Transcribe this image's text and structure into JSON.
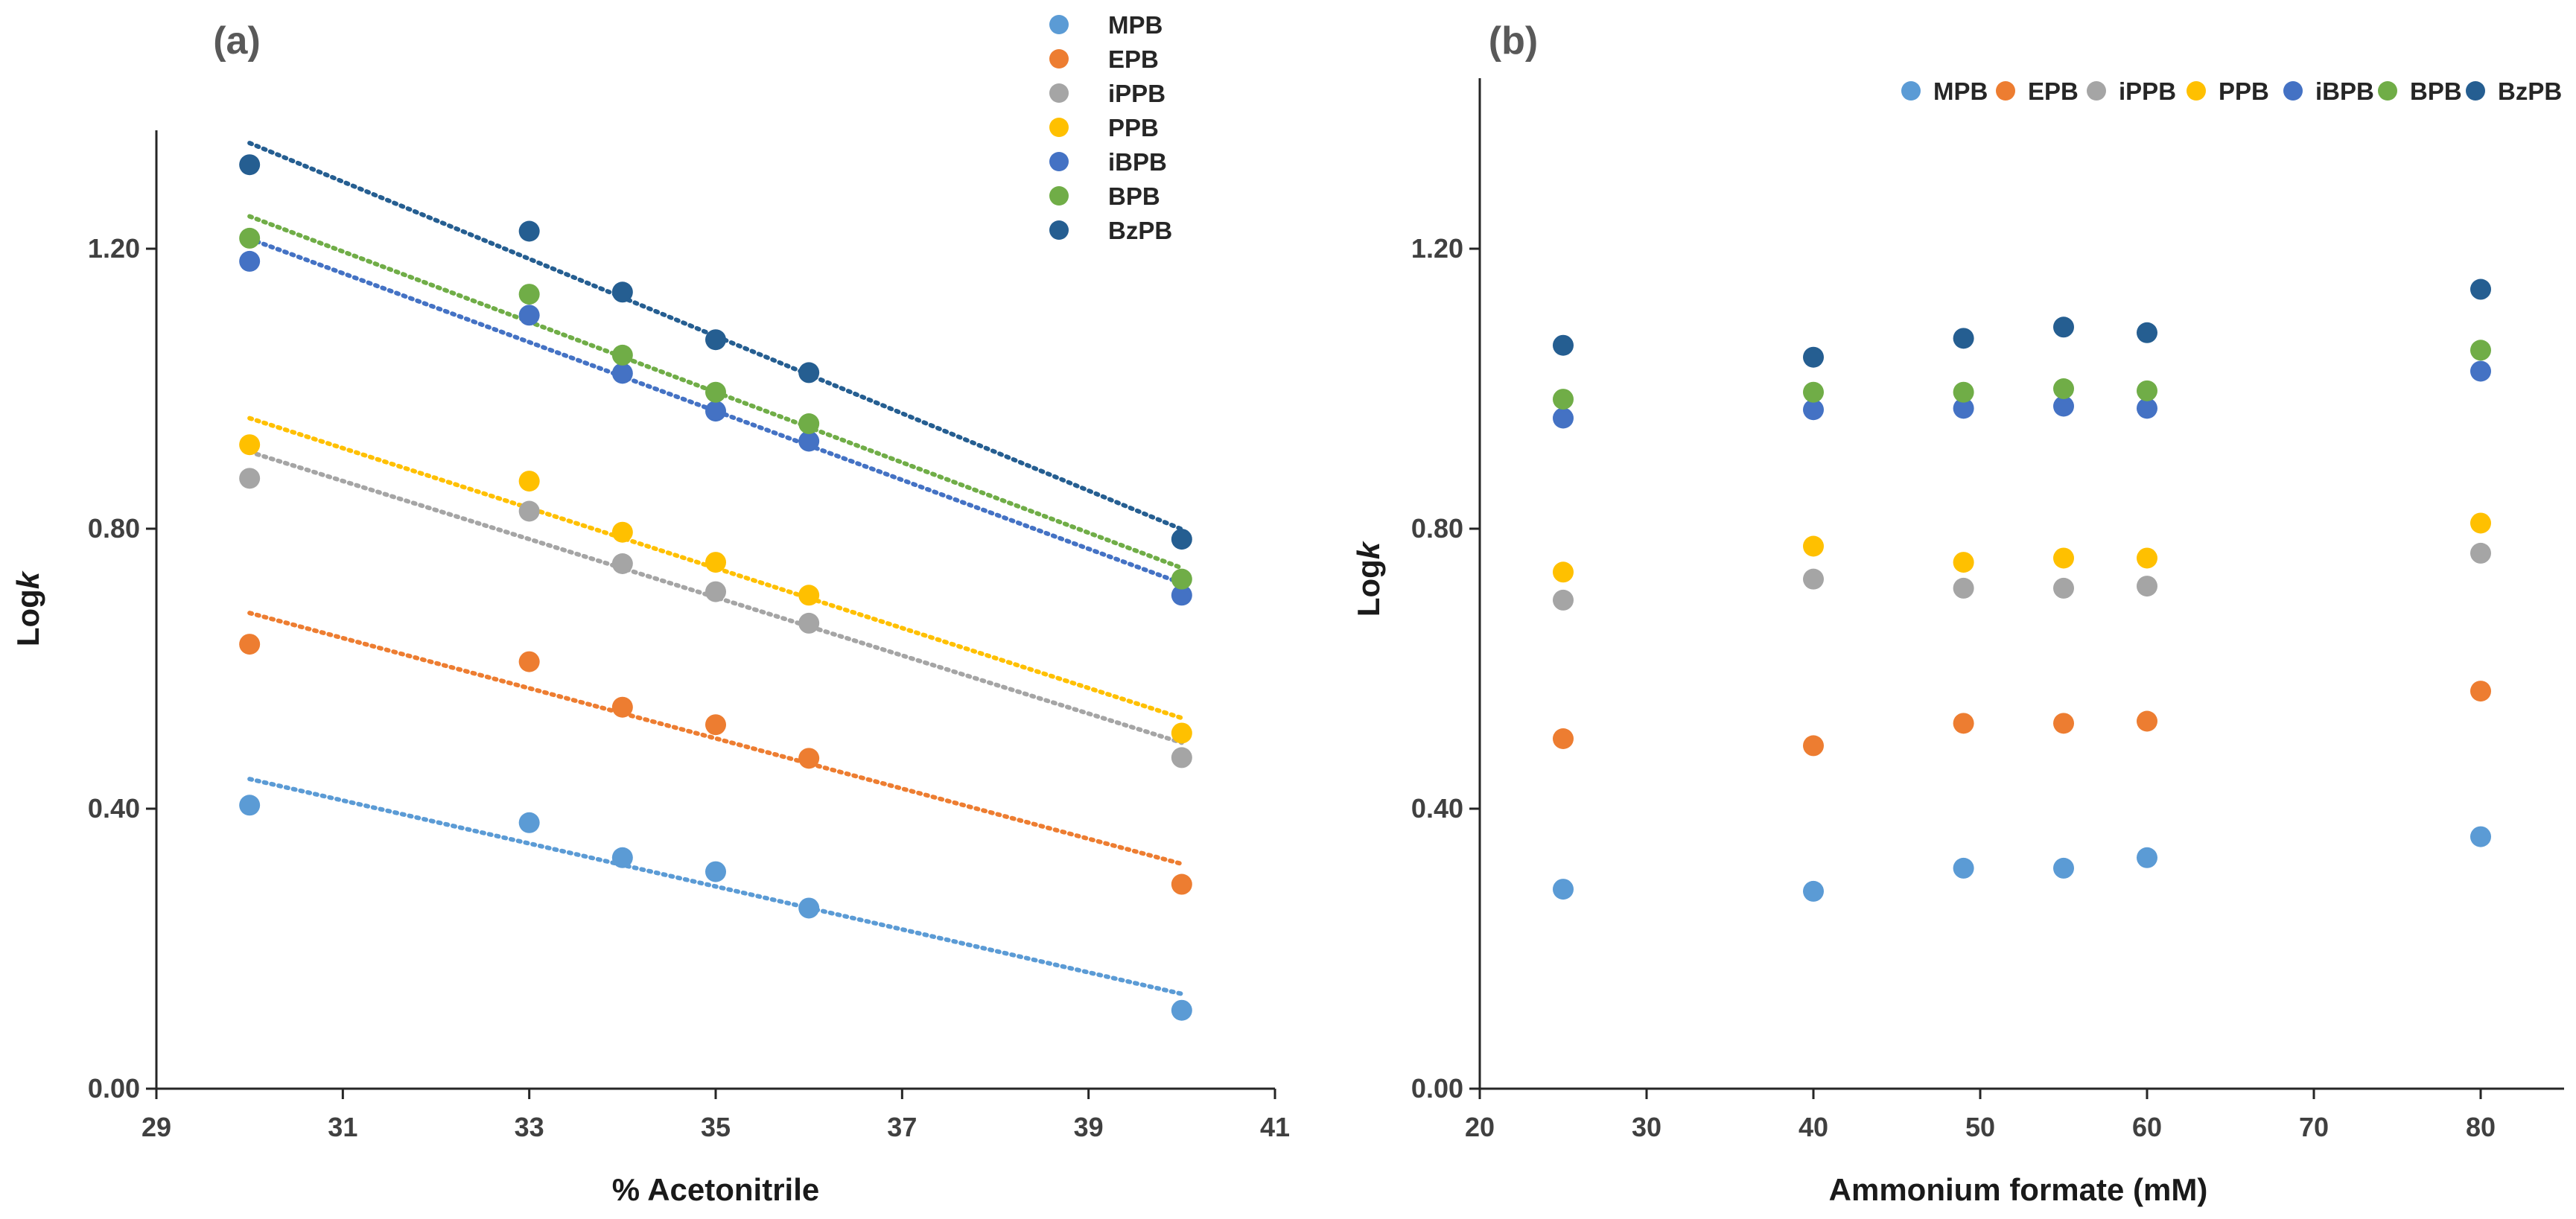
{
  "colors": {
    "MPB": "#5b9bd5",
    "EPB": "#ed7d31",
    "iPPB": "#a5a5a5",
    "PPB": "#ffc000",
    "iBPB": "#4472c4",
    "BPB": "#70ad47",
    "BzPB": "#255e91"
  },
  "chart_data": [
    {
      "type": "scatter",
      "panel_label": "(a)",
      "xlabel": "% Acetonitrile",
      "ylabel_prefix": "Log",
      "ylabel_italic": "k",
      "xlim": [
        29,
        41
      ],
      "ylim": [
        0,
        1.4
      ],
      "xticks": [
        29,
        31,
        33,
        35,
        37,
        39,
        41
      ],
      "xtick_labels": [
        "29",
        "31",
        "33",
        "35",
        "37",
        "39",
        "41"
      ],
      "yticks": [
        0,
        0.4,
        0.8,
        1.2
      ],
      "ytick_labels": [
        "0.00",
        "0.40",
        "0.80",
        "1.20"
      ],
      "legend_position": "top-right",
      "trendlines": "linear, dotted",
      "x": [
        30,
        33,
        34,
        35,
        36,
        40
      ],
      "series": [
        {
          "name": "MPB",
          "values": [
            0.405,
            0.38,
            0.33,
            0.31,
            0.258,
            0.112
          ]
        },
        {
          "name": "EPB",
          "values": [
            0.635,
            0.61,
            0.545,
            0.52,
            0.472,
            0.292
          ]
        },
        {
          "name": "iPPB",
          "values": [
            0.872,
            0.825,
            0.75,
            0.71,
            0.665,
            0.473
          ]
        },
        {
          "name": "PPB",
          "values": [
            0.92,
            0.868,
            0.795,
            0.752,
            0.705,
            0.508
          ]
        },
        {
          "name": "iBPB",
          "values": [
            1.182,
            1.105,
            1.022,
            0.968,
            0.925,
            0.705
          ]
        },
        {
          "name": "BPB",
          "values": [
            1.215,
            1.135,
            1.048,
            0.995,
            0.95,
            0.728
          ]
        },
        {
          "name": "BzPB",
          "values": [
            1.32,
            1.225,
            1.138,
            1.07,
            1.023,
            0.785
          ]
        }
      ]
    },
    {
      "type": "scatter",
      "panel_label": "(b)",
      "xlabel": "Ammonium formate (mM)",
      "ylabel_prefix": "Log",
      "ylabel_italic": "k",
      "xlim": [
        20,
        85
      ],
      "ylim": [
        0,
        1.4
      ],
      "xticks": [
        20,
        30,
        40,
        50,
        60,
        70,
        80
      ],
      "xtick_labels": [
        "20",
        "30",
        "40",
        "50",
        "60",
        "70",
        "80"
      ],
      "yticks": [
        0,
        0.4,
        0.8,
        1.2
      ],
      "ytick_labels": [
        "0.00",
        "0.40",
        "0.80",
        "1.20"
      ],
      "legend_position": "top",
      "x": [
        25,
        40,
        49,
        55,
        60,
        80
      ],
      "series": [
        {
          "name": "MPB",
          "values": [
            0.285,
            0.282,
            0.315,
            0.315,
            0.33,
            0.36
          ]
        },
        {
          "name": "EPB",
          "values": [
            0.5,
            0.49,
            0.522,
            0.522,
            0.525,
            0.568
          ]
        },
        {
          "name": "iPPB",
          "values": [
            0.698,
            0.728,
            0.715,
            0.715,
            0.718,
            0.765
          ]
        },
        {
          "name": "PPB",
          "values": [
            0.738,
            0.775,
            0.752,
            0.758,
            0.758,
            0.808
          ]
        },
        {
          "name": "iBPB",
          "values": [
            0.958,
            0.97,
            0.972,
            0.975,
            0.972,
            1.025
          ]
        },
        {
          "name": "BPB",
          "values": [
            0.985,
            0.995,
            0.995,
            1.0,
            0.997,
            1.055
          ]
        },
        {
          "name": "BzPB",
          "values": [
            1.062,
            1.045,
            1.072,
            1.088,
            1.08,
            1.142
          ]
        }
      ]
    }
  ]
}
